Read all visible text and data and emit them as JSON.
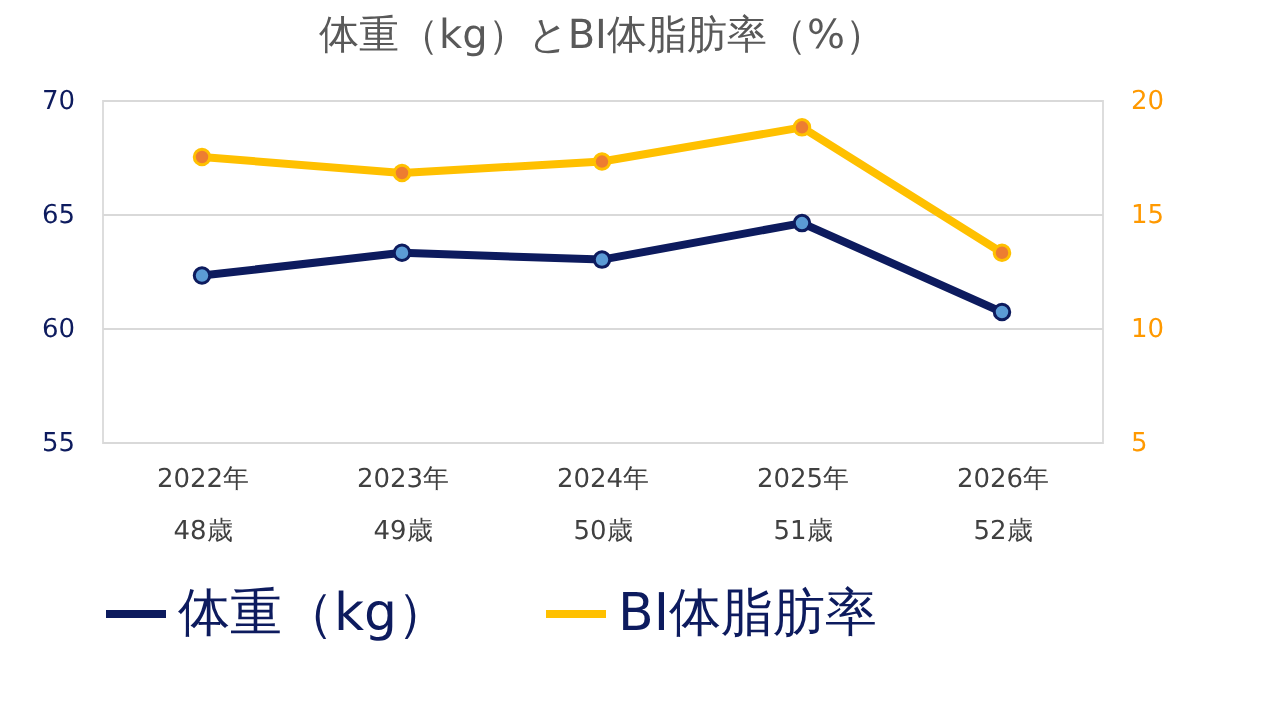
{
  "chart_data": {
    "type": "line",
    "title": "体重（kg）とBI体脂肪率（%）",
    "categories": [
      "2022年\n48歳",
      "2023年\n49歳",
      "2024年\n50歳",
      "2025年\n51歳",
      "2026年\n52歳"
    ],
    "series": [
      {
        "name": "体重（kg）",
        "color": "#0d1b5e",
        "values": [
          62.3,
          63.3,
          63.0,
          64.6,
          60.7
        ]
      },
      {
        "name": "BI体脂肪率",
        "color": "#ffc000",
        "axis": "y2",
        "values": [
          17.5,
          16.8,
          17.3,
          18.8,
          13.3
        ]
      }
    ],
    "ylim": [
      55,
      70
    ],
    "yticks": [
      55,
      60,
      65,
      70
    ],
    "y2lim": [
      5,
      20
    ],
    "y2ticks": [
      5,
      10,
      15,
      20
    ],
    "grid": "y",
    "legend": "bottom",
    "marker": "circle",
    "line_style": "solid"
  }
}
